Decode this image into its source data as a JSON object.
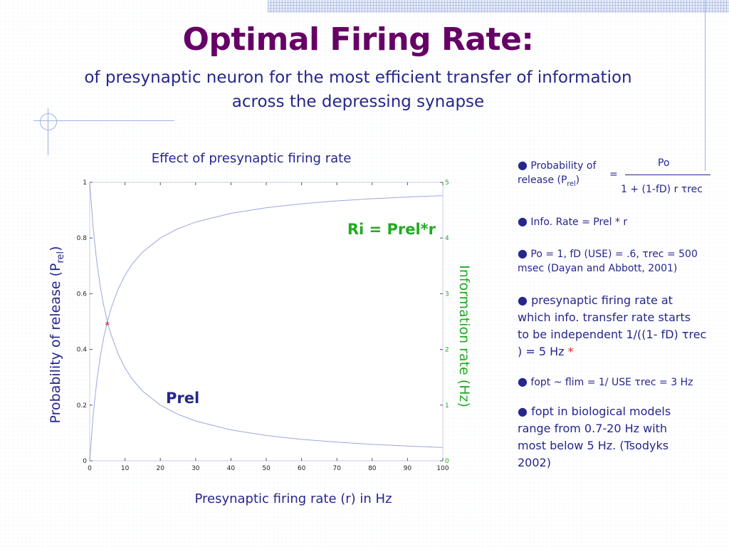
{
  "slide": {
    "title": "Optimal Firing Rate:",
    "subtitle_line1": "of presynaptic neuron for the most efficient transfer of information",
    "subtitle_line2": "across the depressing synapse"
  },
  "chart_data": {
    "type": "line",
    "title": "Effect of presynaptic firing rate",
    "xlabel": "Presynaptic firing rate (r) in Hz",
    "ylabel_left": "Probability of release (P",
    "ylabel_left_sub": "rel",
    "ylabel_left_close": ")",
    "ylabel_right": "Information rate (Hz)",
    "xlim": [
      0,
      100
    ],
    "ylim_left": [
      0,
      1
    ],
    "ylim_right": [
      0,
      5
    ],
    "x_ticks": [
      "0",
      "10",
      "20",
      "30",
      "40",
      "50",
      "60",
      "70",
      "80",
      "90",
      "100"
    ],
    "y_left_ticks": [
      "0",
      "0.2",
      "0.4",
      "0.6",
      "0.8",
      "1"
    ],
    "y_right_ticks": [
      "0",
      "1",
      "2",
      "3",
      "4",
      "5"
    ],
    "series": [
      {
        "name": "Prel",
        "axis": "left",
        "x": [
          0,
          1,
          2,
          3,
          4,
          5,
          6,
          8,
          10,
          12,
          15,
          20,
          25,
          30,
          40,
          50,
          60,
          70,
          80,
          90,
          100
        ],
        "values": [
          1.0,
          0.833,
          0.714,
          0.625,
          0.556,
          0.5,
          0.455,
          0.385,
          0.333,
          0.294,
          0.25,
          0.2,
          0.167,
          0.143,
          0.111,
          0.091,
          0.077,
          0.067,
          0.059,
          0.053,
          0.048
        ]
      },
      {
        "name": "Ri = Prel*r",
        "axis": "right",
        "x": [
          0,
          1,
          2,
          3,
          4,
          5,
          6,
          8,
          10,
          12,
          15,
          20,
          25,
          30,
          40,
          50,
          60,
          70,
          80,
          90,
          100
        ],
        "values": [
          0,
          0.833,
          1.429,
          1.875,
          2.222,
          2.5,
          2.727,
          3.077,
          3.333,
          3.529,
          3.75,
          4.0,
          4.167,
          4.286,
          4.444,
          4.545,
          4.615,
          4.667,
          4.706,
          4.737,
          4.762
        ]
      }
    ],
    "annotations": {
      "ri_label": "Ri = Prel*r",
      "prel_label": "Prel",
      "marker": "*",
      "marker_x": 5,
      "marker_y": 0.49
    },
    "colors": {
      "curve": "#9ba6e0",
      "text": "#26268c",
      "green": "#22aa22",
      "marker": "#dd2222"
    }
  },
  "bullets": {
    "b1_a": "Probability of",
    "b1_b": "release (P",
    "b1_sub": "rel",
    "b1_c": ")",
    "b1_eq": "=",
    "b1_num": "Po",
    "b1_den": "1 + (1-fD) r τrec",
    "b2": "Info. Rate  = Prel * r",
    "b3_l1": "Po = 1, fD (USE) = .6, τrec = 500",
    "b3_l2": "msec  (Dayan and Abbott, 2001)",
    "b4_l1": "presynaptic firing rate at",
    "b4_l2": "which info. transfer rate starts",
    "b4_l3": "to be  independent 1/((1- fD) τrec",
    "b4_l4": ") = 5 Hz",
    "b4_star": "*",
    "b5": "fopt ~ flim = 1/ USE τrec = 3 Hz",
    "b6_l1": "fopt in biological models",
    "b6_l2": "range from 0.7-20 Hz with",
    "b6_l3": "most below 5 Hz. (Tsodyks",
    "b6_l4": "2002)"
  }
}
